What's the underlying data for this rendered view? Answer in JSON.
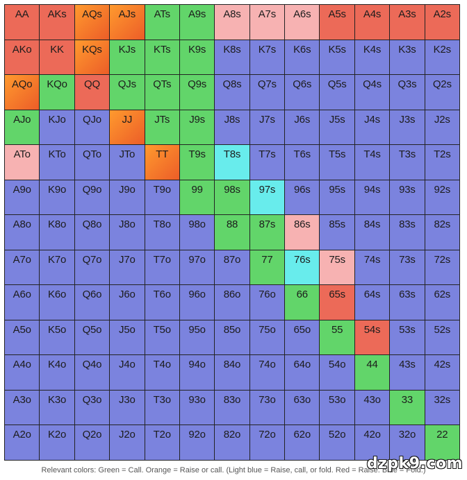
{
  "colors": {
    "fold": "#7b83de",
    "call": "#62d56a",
    "raise": "#ec6a58",
    "raise_or_call_start": "#ff9a2e",
    "raise_or_call_end": "#ec5d28",
    "raise_call_or_fold": "#68ecec",
    "mixed": "#f7b2b2"
  },
  "chart_data": {
    "type": "table",
    "rows": [
      [
        [
          "AA",
          "R"
        ],
        [
          "AKs",
          "R"
        ],
        [
          "AQs",
          "O"
        ],
        [
          "AJs",
          "O"
        ],
        [
          "ATs",
          "G"
        ],
        [
          "A9s",
          "G"
        ],
        [
          "A8s",
          "P"
        ],
        [
          "A7s",
          "P"
        ],
        [
          "A6s",
          "P"
        ],
        [
          "A5s",
          "R"
        ],
        [
          "A4s",
          "R"
        ],
        [
          "A3s",
          "R"
        ],
        [
          "A2s",
          "R"
        ]
      ],
      [
        [
          "AKo",
          "R"
        ],
        [
          "KK",
          "R"
        ],
        [
          "KQs",
          "O"
        ],
        [
          "KJs",
          "G"
        ],
        [
          "KTs",
          "G"
        ],
        [
          "K9s",
          "G"
        ],
        [
          "K8s",
          "B"
        ],
        [
          "K7s",
          "B"
        ],
        [
          "K6s",
          "B"
        ],
        [
          "K5s",
          "B"
        ],
        [
          "K4s",
          "B"
        ],
        [
          "K3s",
          "B"
        ],
        [
          "K2s",
          "B"
        ]
      ],
      [
        [
          "AQo",
          "O"
        ],
        [
          "KQo",
          "G"
        ],
        [
          "QQ",
          "R"
        ],
        [
          "QJs",
          "G"
        ],
        [
          "QTs",
          "G"
        ],
        [
          "Q9s",
          "G"
        ],
        [
          "Q8s",
          "B"
        ],
        [
          "Q7s",
          "B"
        ],
        [
          "Q6s",
          "B"
        ],
        [
          "Q5s",
          "B"
        ],
        [
          "Q4s",
          "B"
        ],
        [
          "Q3s",
          "B"
        ],
        [
          "Q2s",
          "B"
        ]
      ],
      [
        [
          "AJo",
          "G"
        ],
        [
          "KJo",
          "B"
        ],
        [
          "QJo",
          "B"
        ],
        [
          "JJ",
          "O"
        ],
        [
          "JTs",
          "G"
        ],
        [
          "J9s",
          "G"
        ],
        [
          "J8s",
          "B"
        ],
        [
          "J7s",
          "B"
        ],
        [
          "J6s",
          "B"
        ],
        [
          "J5s",
          "B"
        ],
        [
          "J4s",
          "B"
        ],
        [
          "J3s",
          "B"
        ],
        [
          "J2s",
          "B"
        ]
      ],
      [
        [
          "ATo",
          "P"
        ],
        [
          "KTo",
          "B"
        ],
        [
          "QTo",
          "B"
        ],
        [
          "JTo",
          "B"
        ],
        [
          "TT",
          "O"
        ],
        [
          "T9s",
          "G"
        ],
        [
          "T8s",
          "C"
        ],
        [
          "T7s",
          "B"
        ],
        [
          "T6s",
          "B"
        ],
        [
          "T5s",
          "B"
        ],
        [
          "T4s",
          "B"
        ],
        [
          "T3s",
          "B"
        ],
        [
          "T2s",
          "B"
        ]
      ],
      [
        [
          "A9o",
          "B"
        ],
        [
          "K9o",
          "B"
        ],
        [
          "Q9o",
          "B"
        ],
        [
          "J9o",
          "B"
        ],
        [
          "T9o",
          "B"
        ],
        [
          "99",
          "G"
        ],
        [
          "98s",
          "G"
        ],
        [
          "97s",
          "C"
        ],
        [
          "96s",
          "B"
        ],
        [
          "95s",
          "B"
        ],
        [
          "94s",
          "B"
        ],
        [
          "93s",
          "B"
        ],
        [
          "92s",
          "B"
        ]
      ],
      [
        [
          "A8o",
          "B"
        ],
        [
          "K8o",
          "B"
        ],
        [
          "Q8o",
          "B"
        ],
        [
          "J8o",
          "B"
        ],
        [
          "T8o",
          "B"
        ],
        [
          "98o",
          "B"
        ],
        [
          "88",
          "G"
        ],
        [
          "87s",
          "G"
        ],
        [
          "86s",
          "P"
        ],
        [
          "85s",
          "B"
        ],
        [
          "84s",
          "B"
        ],
        [
          "83s",
          "B"
        ],
        [
          "82s",
          "B"
        ]
      ],
      [
        [
          "A7o",
          "B"
        ],
        [
          "K7o",
          "B"
        ],
        [
          "Q7o",
          "B"
        ],
        [
          "J7o",
          "B"
        ],
        [
          "T7o",
          "B"
        ],
        [
          "97o",
          "B"
        ],
        [
          "87o",
          "B"
        ],
        [
          "77",
          "G"
        ],
        [
          "76s",
          "C"
        ],
        [
          "75s",
          "P"
        ],
        [
          "74s",
          "B"
        ],
        [
          "73s",
          "B"
        ],
        [
          "72s",
          "B"
        ]
      ],
      [
        [
          "A6o",
          "B"
        ],
        [
          "K6o",
          "B"
        ],
        [
          "Q6o",
          "B"
        ],
        [
          "J6o",
          "B"
        ],
        [
          "T6o",
          "B"
        ],
        [
          "96o",
          "B"
        ],
        [
          "86o",
          "B"
        ],
        [
          "76o",
          "B"
        ],
        [
          "66",
          "G"
        ],
        [
          "65s",
          "R"
        ],
        [
          "64s",
          "B"
        ],
        [
          "63s",
          "B"
        ],
        [
          "62s",
          "B"
        ]
      ],
      [
        [
          "A5o",
          "B"
        ],
        [
          "K5o",
          "B"
        ],
        [
          "Q5o",
          "B"
        ],
        [
          "J5o",
          "B"
        ],
        [
          "T5o",
          "B"
        ],
        [
          "95o",
          "B"
        ],
        [
          "85o",
          "B"
        ],
        [
          "75o",
          "B"
        ],
        [
          "65o",
          "B"
        ],
        [
          "55",
          "G"
        ],
        [
          "54s",
          "R"
        ],
        [
          "53s",
          "B"
        ],
        [
          "52s",
          "B"
        ]
      ],
      [
        [
          "A4o",
          "B"
        ],
        [
          "K4o",
          "B"
        ],
        [
          "Q4o",
          "B"
        ],
        [
          "J4o",
          "B"
        ],
        [
          "T4o",
          "B"
        ],
        [
          "94o",
          "B"
        ],
        [
          "84o",
          "B"
        ],
        [
          "74o",
          "B"
        ],
        [
          "64o",
          "B"
        ],
        [
          "54o",
          "B"
        ],
        [
          "44",
          "G"
        ],
        [
          "43s",
          "B"
        ],
        [
          "42s",
          "B"
        ]
      ],
      [
        [
          "A3o",
          "B"
        ],
        [
          "K3o",
          "B"
        ],
        [
          "Q3o",
          "B"
        ],
        [
          "J3o",
          "B"
        ],
        [
          "T3o",
          "B"
        ],
        [
          "93o",
          "B"
        ],
        [
          "83o",
          "B"
        ],
        [
          "73o",
          "B"
        ],
        [
          "63o",
          "B"
        ],
        [
          "53o",
          "B"
        ],
        [
          "43o",
          "B"
        ],
        [
          "33",
          "G"
        ],
        [
          "32s",
          "B"
        ]
      ],
      [
        [
          "A2o",
          "B"
        ],
        [
          "K2o",
          "B"
        ],
        [
          "Q2o",
          "B"
        ],
        [
          "J2o",
          "B"
        ],
        [
          "T2o",
          "B"
        ],
        [
          "92o",
          "B"
        ],
        [
          "82o",
          "B"
        ],
        [
          "72o",
          "B"
        ],
        [
          "62o",
          "B"
        ],
        [
          "52o",
          "B"
        ],
        [
          "42o",
          "B"
        ],
        [
          "32o",
          "B"
        ],
        [
          "22",
          "G"
        ]
      ]
    ]
  },
  "caption": "Relevant colors: Green = Call. Orange = Raise or call. (Light blue = Raise, call, or fold. Red = Raise. Blue = Fold.)",
  "watermark": "dzpk9.com"
}
